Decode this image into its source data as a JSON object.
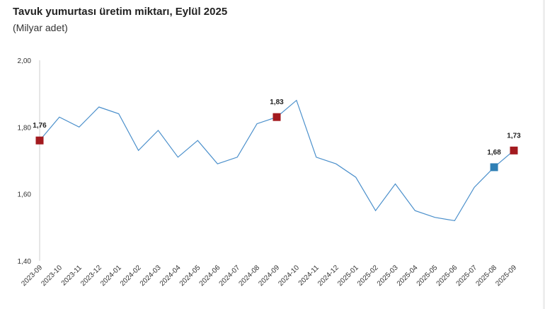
{
  "title": "Tavuk yumurtası üretim miktarı, Eylül 2025",
  "subtitle": "(Milyar adet)",
  "chart_data": {
    "type": "line",
    "categories": [
      "2023-09",
      "2023-10",
      "2023-11",
      "2023-12",
      "2024-01",
      "2024-02",
      "2024-03",
      "2024-04",
      "2024-05",
      "2024-06",
      "2024-07",
      "2024-08",
      "2024-09",
      "2024-10",
      "2024-11",
      "2024-12",
      "2025-01",
      "2025-02",
      "2025-03",
      "2025-04",
      "2025-05",
      "2025-06",
      "2025-07",
      "2025-08",
      "2025-09"
    ],
    "series": [
      {
        "values": [
          1.76,
          1.83,
          1.8,
          1.86,
          1.84,
          1.73,
          1.79,
          1.71,
          1.76,
          1.69,
          1.71,
          1.81,
          1.83,
          1.88,
          1.71,
          1.69,
          1.65,
          1.55,
          1.63,
          1.55,
          1.53,
          1.52,
          1.62,
          1.68,
          1.73
        ]
      }
    ],
    "ylim": [
      1.4,
      2.0
    ],
    "yticks": [
      "1,40",
      "1,60",
      "1,80",
      "2,00"
    ],
    "ytick_values": [
      1.4,
      1.6,
      1.8,
      2.0
    ],
    "highlights": [
      {
        "index": 0,
        "label": "1,76",
        "color": "#a31a1f"
      },
      {
        "index": 12,
        "label": "1,83",
        "color": "#a31a1f"
      },
      {
        "index": 23,
        "label": "1,68",
        "color": "#2f7fb5"
      },
      {
        "index": 24,
        "label": "1,73",
        "color": "#a31a1f"
      }
    ],
    "line_color": "#4a8fcb",
    "axis_color": "#cccccc"
  }
}
